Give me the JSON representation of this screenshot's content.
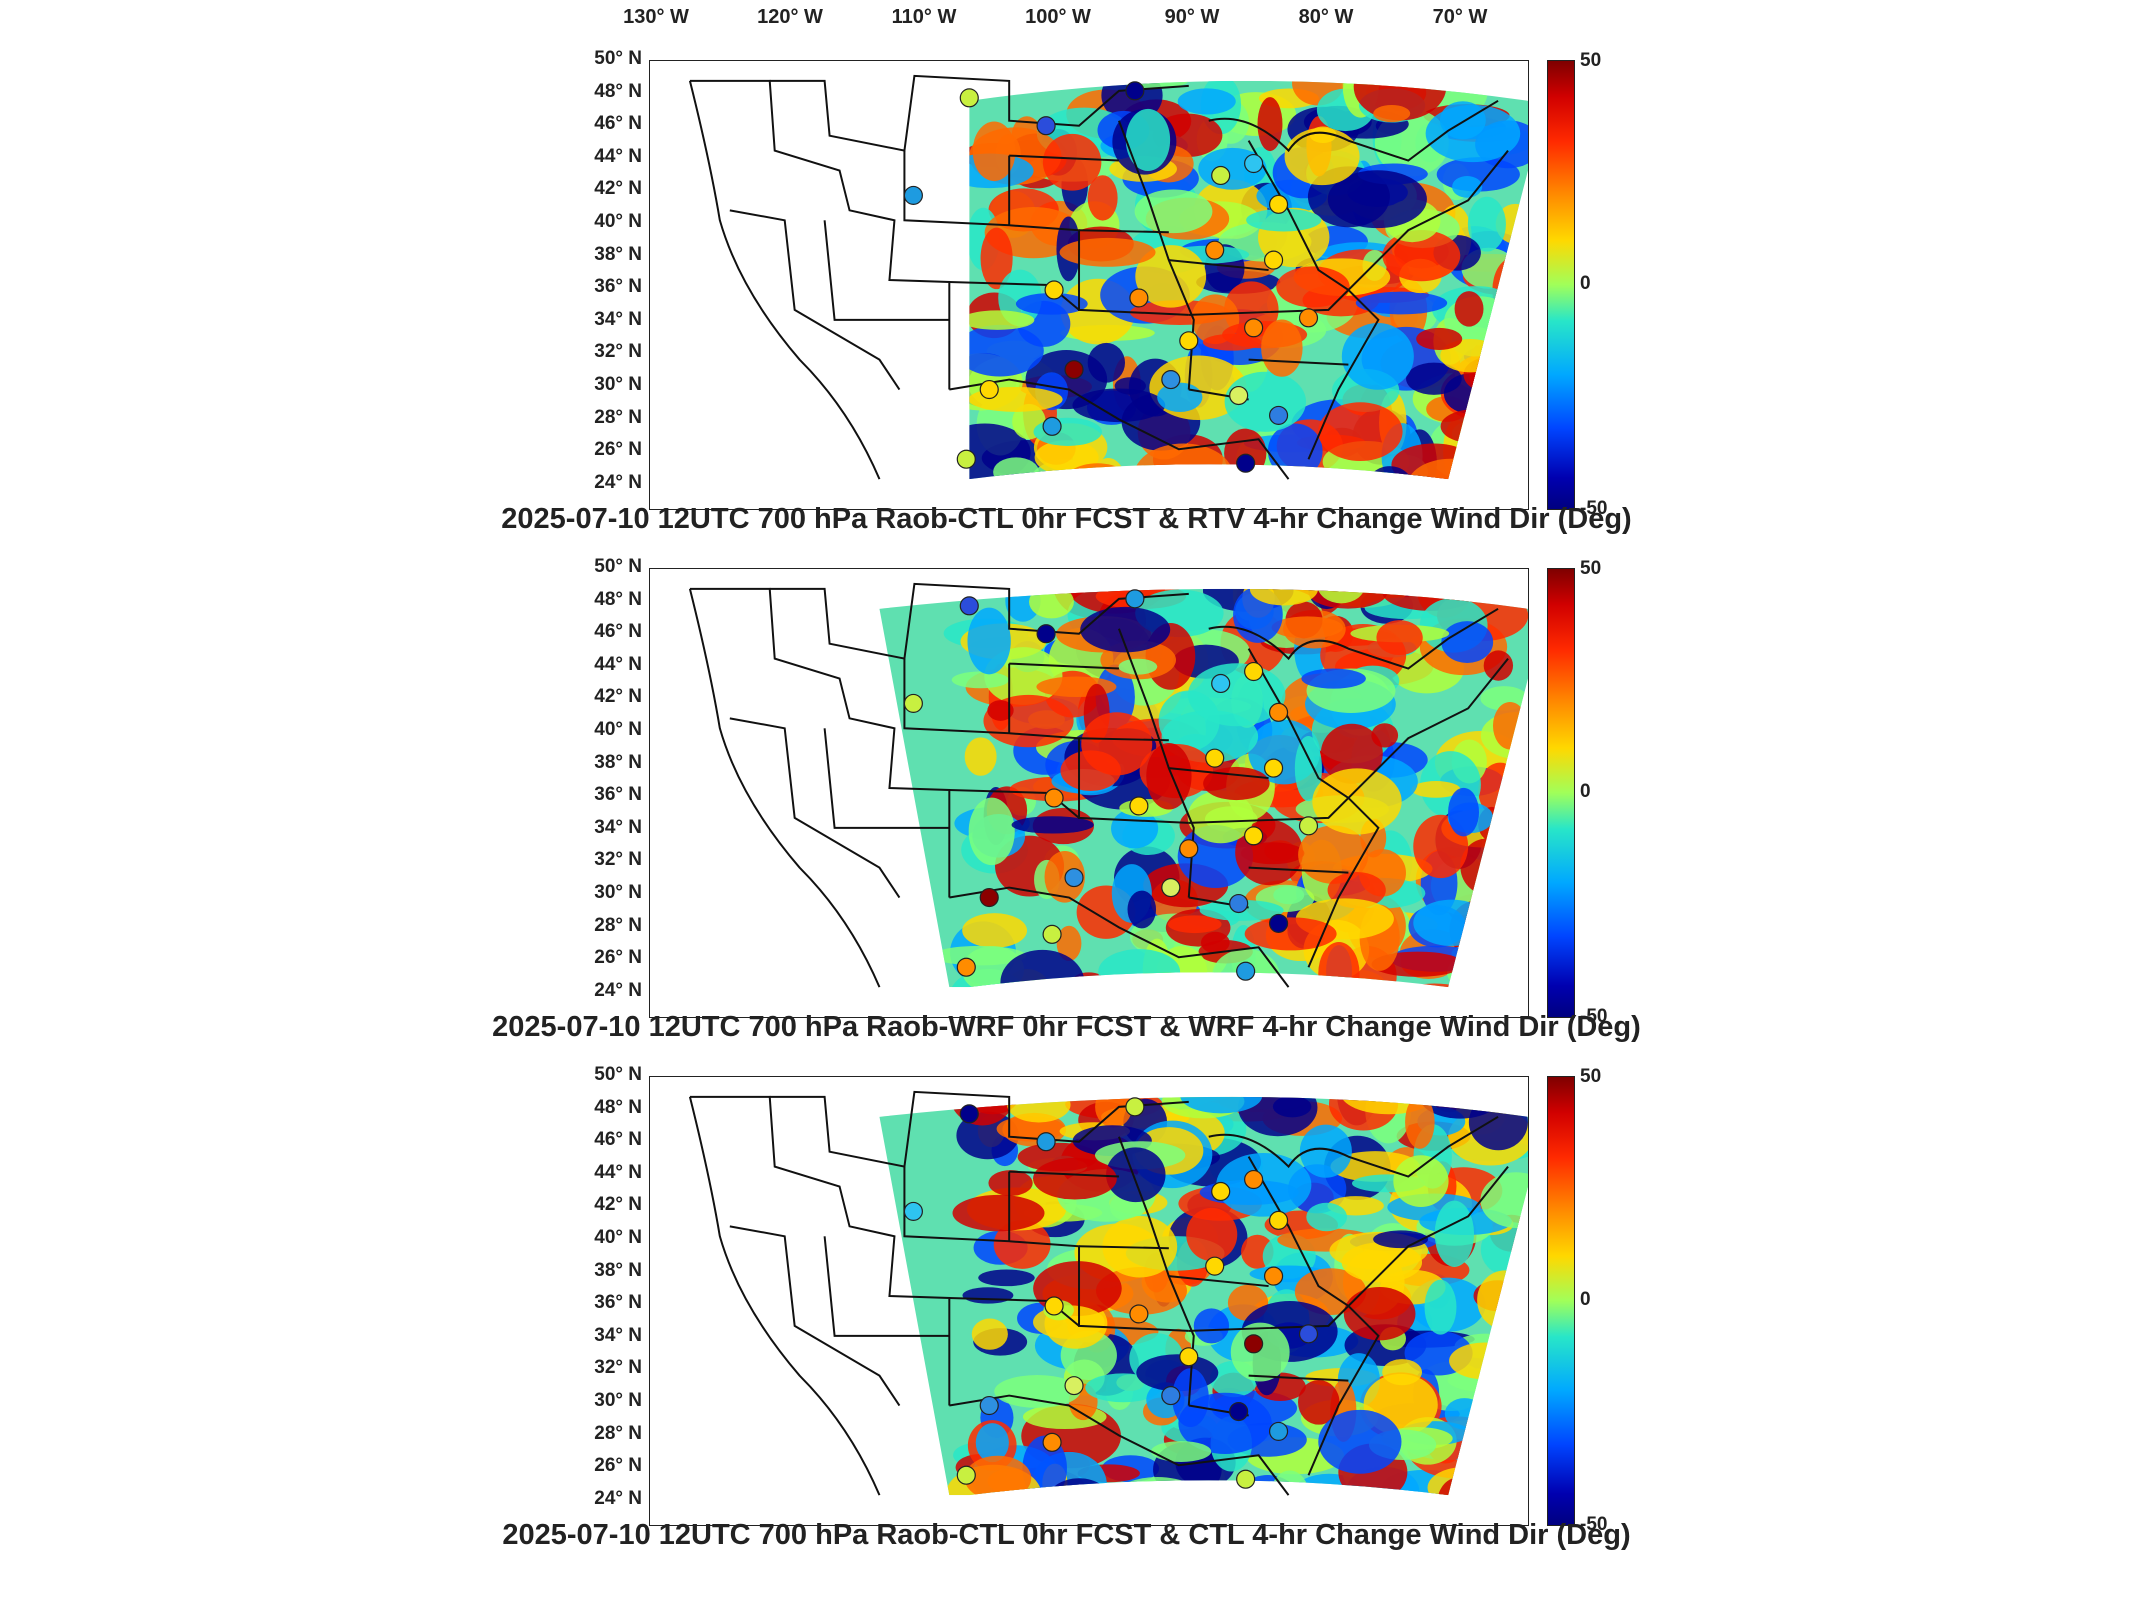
{
  "lon_labels": [
    "130° W",
    "120° W",
    "110° W",
    "100° W",
    "90° W",
    "80° W",
    "70° W"
  ],
  "lat_labels": [
    "50° N",
    "48° N",
    "46° N",
    "44° N",
    "42° N",
    "40° N",
    "38° N",
    "36° N",
    "34° N",
    "32° N",
    "30° N",
    "28° N",
    "26° N",
    "24° N"
  ],
  "colorbar": {
    "max": "50",
    "mid": "0",
    "min": "-50",
    "colors": [
      "#7f0000",
      "#ff2a00",
      "#ffd800",
      "#28e6c8",
      "#0045ff",
      "#000080"
    ]
  },
  "panels": [
    {
      "title": "2025-07-10 12UTC 700 hPa Raob-CTL 0hr FCST & RTV 4-hr Change Wind Dir (Deg)"
    },
    {
      "title": "2025-07-10 12UTC 700 hPa Raob-WRF 0hr FCST & WRF 4-hr Change Wind Dir (Deg)"
    },
    {
      "title": "2025-07-10 12UTC 700 hPa Raob-CTL 0hr FCST & CTL 4-hr Change Wind Dir (Deg)"
    }
  ]
}
